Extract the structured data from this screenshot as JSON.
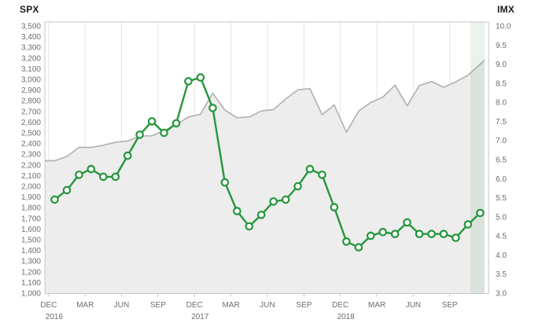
{
  "chart_data": {
    "type": "line",
    "description": "Dual-axis monthly line chart comparing SPX (gray area line, left axis) and IMX (green markered line, right axis) from Dec 2016 through Nov 2019, with the latest month highlighted by a light green vertical band.",
    "left_axis": {
      "title": "SPX",
      "min": 1000,
      "max": 3500,
      "step": 100,
      "tick_labels": [
        "3,500",
        "3,400",
        "3,300",
        "3,200",
        "3,100",
        "3,000",
        "2,900",
        "2,800",
        "2,700",
        "2,600",
        "2,500",
        "2,400",
        "2,300",
        "2,200",
        "2,100",
        "2,000",
        "1,900",
        "1,800",
        "1,700",
        "1,600",
        "1,500",
        "1,400",
        "1,300",
        "1,200",
        "1,100",
        "1,000"
      ]
    },
    "right_axis": {
      "title": "IMX",
      "min": 3.0,
      "max": 10.0,
      "step": 0.5,
      "tick_labels": [
        "10.0",
        "9.5",
        "9.0",
        "8.5",
        "8.0",
        "7.5",
        "7.0",
        "6.5",
        "6.0",
        "5.5",
        "5.0",
        "4.5",
        "4.0",
        "3.5",
        "3.0"
      ]
    },
    "x_tick_labels": [
      {
        "label": "DEC",
        "year": "2016"
      },
      {
        "label": "MAR",
        "year": ""
      },
      {
        "label": "JUN",
        "year": ""
      },
      {
        "label": "SEP",
        "year": ""
      },
      {
        "label": "DEC",
        "year": "2017"
      },
      {
        "label": "MAR",
        "year": ""
      },
      {
        "label": "JUN",
        "year": ""
      },
      {
        "label": "SEP",
        "year": ""
      },
      {
        "label": "DEC",
        "year": "2018"
      },
      {
        "label": "MAR",
        "year": ""
      },
      {
        "label": "JUN",
        "year": ""
      },
      {
        "label": "SEP",
        "year": ""
      }
    ],
    "months_per_point": 1,
    "series": [
      {
        "name": "SPX",
        "style": "area-line",
        "axis": "left",
        "line_color": "#b3b3b3",
        "fill_color": "#ededed",
        "values": [
          2239,
          2279,
          2364,
          2363,
          2384,
          2412,
          2423,
          2470,
          2472,
          2519,
          2575,
          2648,
          2674,
          2870,
          2714,
          2641,
          2648,
          2705,
          2718,
          2816,
          2902,
          2914,
          2670,
          2760,
          2505,
          2704,
          2784,
          2834,
          2946,
          2752,
          2942,
          2980,
          2926,
          2977,
          3038,
          3141
        ]
      },
      {
        "name": "IMX",
        "style": "line-circle-markers",
        "axis": "right",
        "line_color": "#24963c",
        "marker_fill": "#ffffff",
        "values": [
          5.45,
          5.7,
          6.1,
          6.25,
          6.05,
          6.05,
          6.6,
          7.15,
          7.5,
          7.2,
          7.45,
          8.55,
          8.65,
          7.85,
          5.9,
          5.15,
          4.75,
          5.05,
          5.4,
          5.45,
          5.8,
          6.25,
          6.1,
          5.25,
          4.35,
          4.2,
          4.5,
          4.6,
          4.55,
          4.85,
          4.55,
          4.55,
          4.55,
          4.45,
          4.8,
          5.1
        ]
      }
    ],
    "highlight_band": {
      "meaning": "latest month",
      "color": "rgba(80,160,90,0.12)"
    },
    "grid": "vertical-only",
    "grid_color": "#e5e5e5",
    "border_color": "#c6c6c6",
    "tick_text_color": "#6d6d6d"
  }
}
